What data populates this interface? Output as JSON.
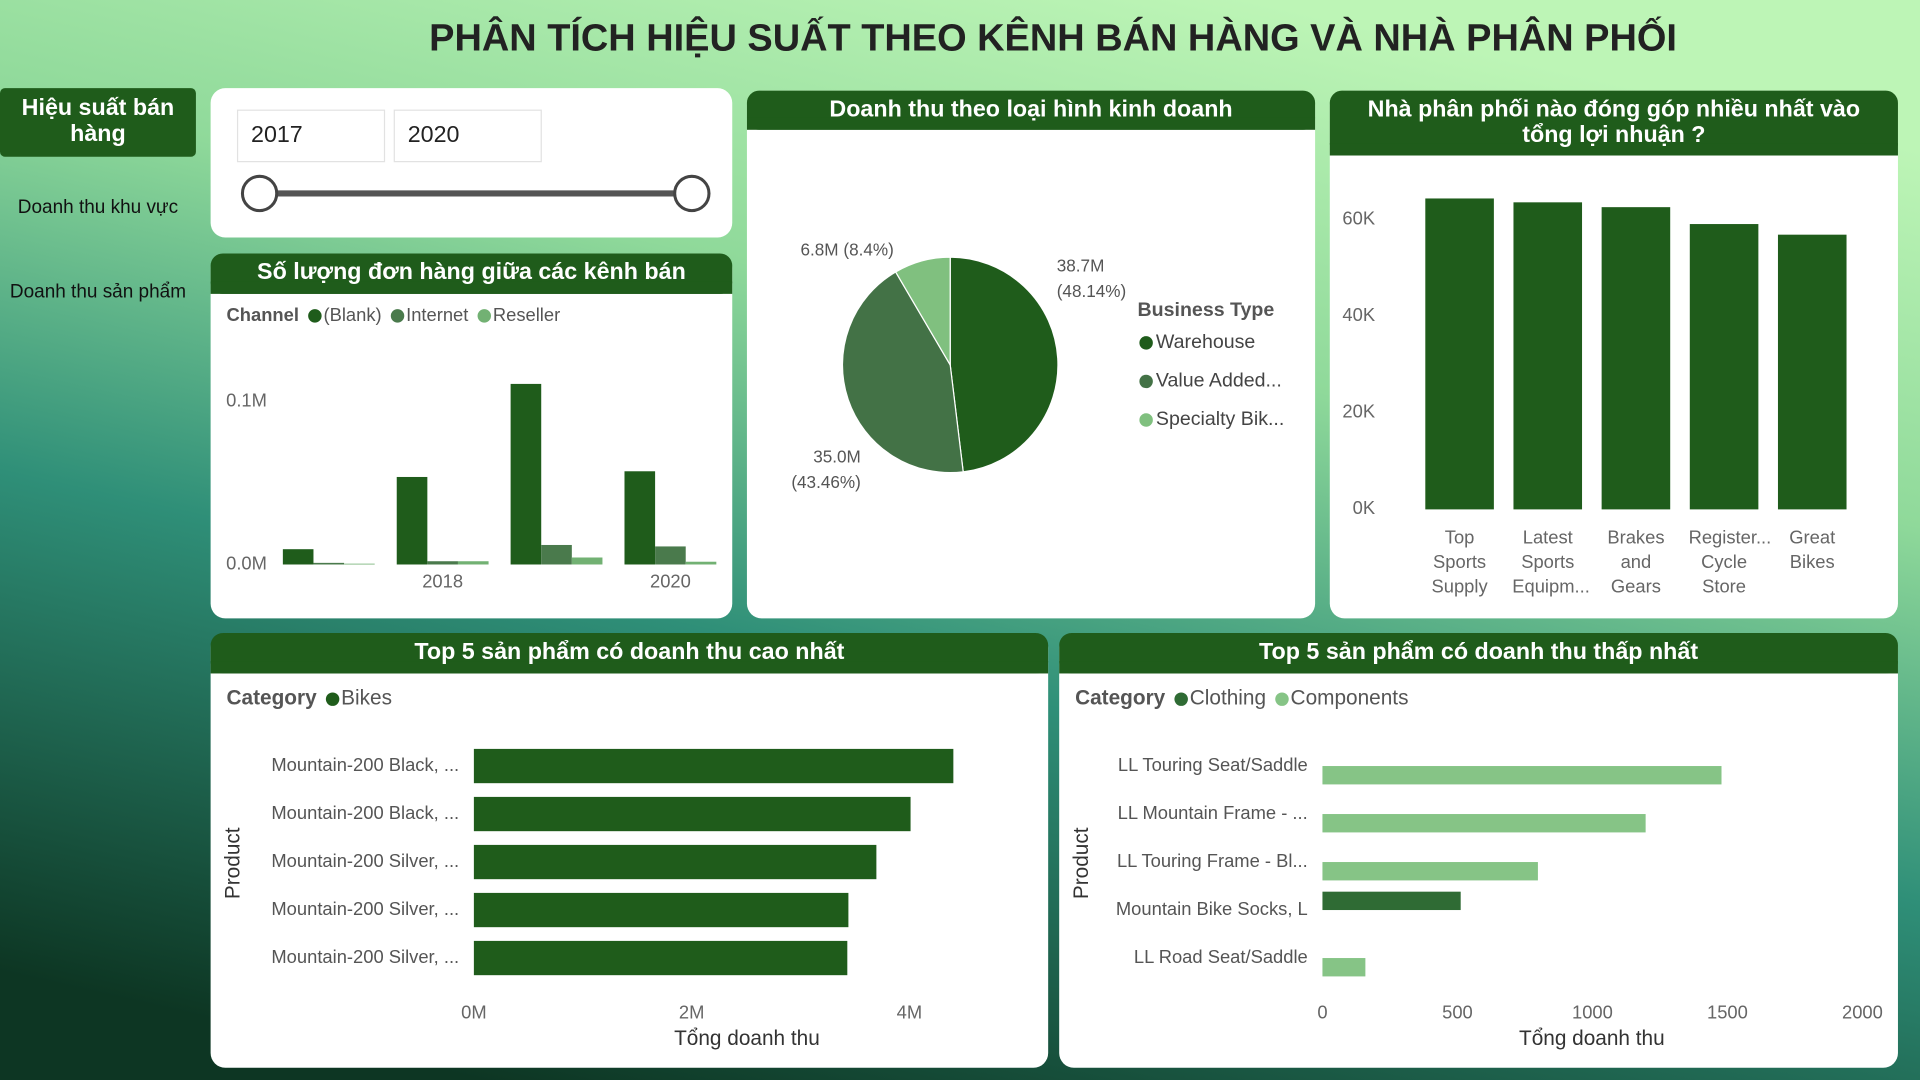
{
  "header": {
    "title": "PHÂN TÍCH HIỆU SUẤT THEO KÊNH BÁN HÀNG VÀ NHÀ PHÂN PHỐI"
  },
  "nav": {
    "items": [
      "Hiệu suất bán hàng",
      "Doanh thu khu vực",
      "Doanh thu sản phẩm"
    ]
  },
  "slicer": {
    "start": 2017,
    "end": 2020
  },
  "chart_data": [
    {
      "type": "bar",
      "title": "Số lượng đơn hàng giữa các kênh bán",
      "legend_title": "Channel",
      "categories": [
        null,
        "2018",
        null,
        "2020"
      ],
      "series": [
        {
          "name": "(Blank)",
          "color": "#1f5c1b",
          "values": [
            9400,
            53800,
            111000,
            57300
          ]
        },
        {
          "name": "Internet",
          "color": "#4a7a4c",
          "values": [
            1000,
            2000,
            12000,
            11100
          ]
        },
        {
          "name": "Reseller",
          "color": "#72b173",
          "values": [
            500,
            2000,
            4300,
            1700
          ]
        }
      ],
      "ylim": [
        0,
        140000
      ],
      "yticks": [
        {
          "value": 0,
          "label": "0.0M"
        },
        {
          "value": 100000,
          "label": "0.1M"
        }
      ]
    },
    {
      "type": "pie",
      "title": "Doanh thu theo loại hình kinh doanh",
      "legend_title": "Business Type",
      "categories": [
        "Warehouse",
        "Value Added...",
        "Specialty Bik..."
      ],
      "values": [
        38700000,
        35000000,
        6800000
      ],
      "value_labels": [
        "38.7M",
        "35.0M",
        "6.8M"
      ],
      "percent_labels": [
        "(48.14%)",
        "(43.46%)",
        "(8.4%)"
      ],
      "colors": [
        "#1f5c1b",
        "#437246",
        "#80c07f"
      ]
    },
    {
      "type": "bar",
      "title": "Nhà phân phối nào đóng góp nhiều nhất vào tổng lợi nhuận ?",
      "categories": [
        "Top Sports Supply",
        "Latest Sports Equipm...",
        "Brakes and Gears",
        "Register... Cycle Store",
        "Great Bikes"
      ],
      "values": [
        64400,
        63600,
        62600,
        59100,
        56900
      ],
      "color": "#1f5c1b",
      "ylim": [
        0,
        70000
      ],
      "yticks": [
        {
          "value": 0,
          "label": "0K"
        },
        {
          "value": 20000,
          "label": "20K"
        },
        {
          "value": 40000,
          "label": "40K"
        },
        {
          "value": 60000,
          "label": "60K"
        }
      ]
    },
    {
      "type": "hbar",
      "title": "Top 5 sản phẩm có doanh thu cao nhất",
      "legend_title": "Category",
      "x_label": "Tổng doanh thu",
      "y_label": "Product",
      "categories": [
        "Mountain-200 Black, ...",
        "Mountain-200 Black, ...",
        "Mountain-200 Silver, ...",
        "Mountain-200 Silver, ...",
        "Mountain-200 Silver, ..."
      ],
      "series": [
        {
          "name": "Bikes",
          "color": "#1f5c1b",
          "values": [
            4404000,
            4011000,
            3697000,
            3440000,
            3430000
          ]
        }
      ],
      "xlim": [
        0,
        4600000
      ],
      "xticks": [
        {
          "value": 0,
          "label": "0M"
        },
        {
          "value": 2000000,
          "label": "2M"
        },
        {
          "value": 4000000,
          "label": "4M"
        }
      ]
    },
    {
      "type": "hbar",
      "title": "Top 5 sản phẩm có doanh thu thấp nhất",
      "legend_title": "Category",
      "x_label": "Tổng doanh thu",
      "y_label": "Product",
      "categories": [
        "LL Touring Seat/Saddle",
        "LL Mountain Frame - ...",
        "LL Touring Frame - Bl...",
        "Mountain Bike Socks, L",
        "LL Road Seat/Saddle"
      ],
      "series": [
        {
          "name": "Clothing",
          "color": "#2f6b34",
          "values": [
            null,
            null,
            null,
            512,
            null
          ]
        },
        {
          "name": "Components",
          "color": "#86c486",
          "values": [
            1478,
            1197,
            798,
            null,
            159
          ]
        }
      ],
      "xlim": [
        0,
        2000
      ],
      "xticks": [
        0,
        500,
        1000,
        1500,
        2000
      ]
    }
  ]
}
